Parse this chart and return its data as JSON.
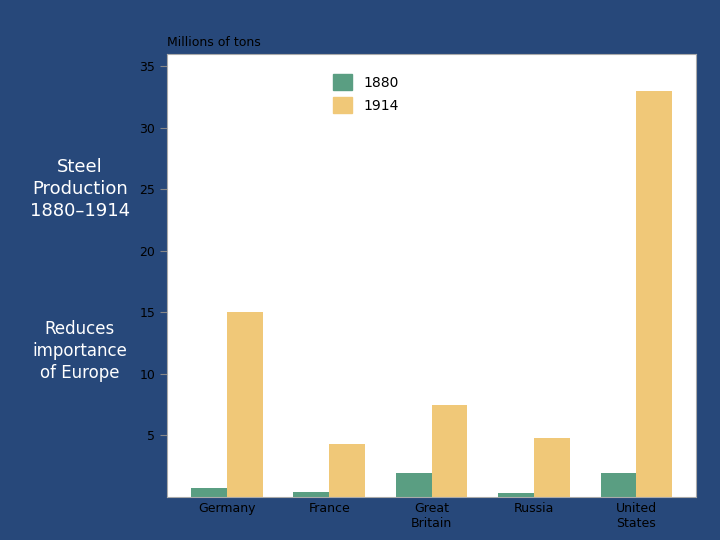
{
  "categories": [
    "Germany",
    "France",
    "Great\nBritain",
    "Russia",
    "United\nStates"
  ],
  "values_1880": [
    0.7,
    0.4,
    1.9,
    0.3,
    1.9
  ],
  "values_1914": [
    15.0,
    4.3,
    7.5,
    4.8,
    33.0
  ],
  "color_1880": "#5a9e82",
  "color_1914": "#f0c878",
  "ylabel": "Millions of tons",
  "ylim": [
    0,
    36
  ],
  "yticks": [
    5,
    10,
    15,
    20,
    25,
    30,
    35
  ],
  "legend_labels": [
    "1880",
    "1914"
  ],
  "background_color": "#27487a",
  "chart_bg": "#ffffff",
  "title_line1": "Steel",
  "title_line2": "Production",
  "title_line3": "1880–1914",
  "subtitle_line1": "Reduces",
  "subtitle_line2": "importance",
  "subtitle_line3": "of Europe",
  "text_color": "#ffffff",
  "bar_width": 0.35
}
